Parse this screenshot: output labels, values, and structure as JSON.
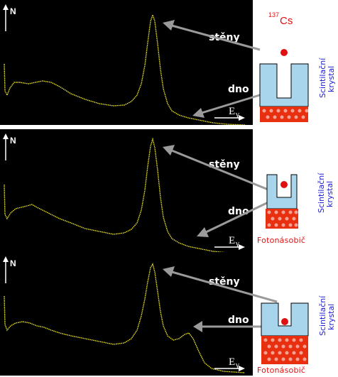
{
  "source": {
    "mass_number": "137",
    "element": "Cs"
  },
  "axis": {
    "y_label": "N",
    "x_label": "E",
    "x_subscript": "γ"
  },
  "labels": {
    "walls": "stěny",
    "bottom": "dno",
    "photomultiplier": "Fotonásobič",
    "crystal_line1": "Scintilační",
    "crystal_line2": "krystal"
  },
  "colors": {
    "plot_background": "#000000",
    "spectrum": "#e8e020",
    "arrow": "#9a9a9a",
    "crystal": "#a8d4ec",
    "source_dot": "#e01010",
    "photomultiplier": "#e83010",
    "label_red": "#e01010",
    "label_blue": "#2020d0"
  },
  "panels": [
    {
      "id": "top",
      "source_position": "above crystal"
    },
    {
      "id": "middle",
      "source_position": "inside well, high"
    },
    {
      "id": "bottom",
      "source_position": "inside well, bottom"
    }
  ]
}
